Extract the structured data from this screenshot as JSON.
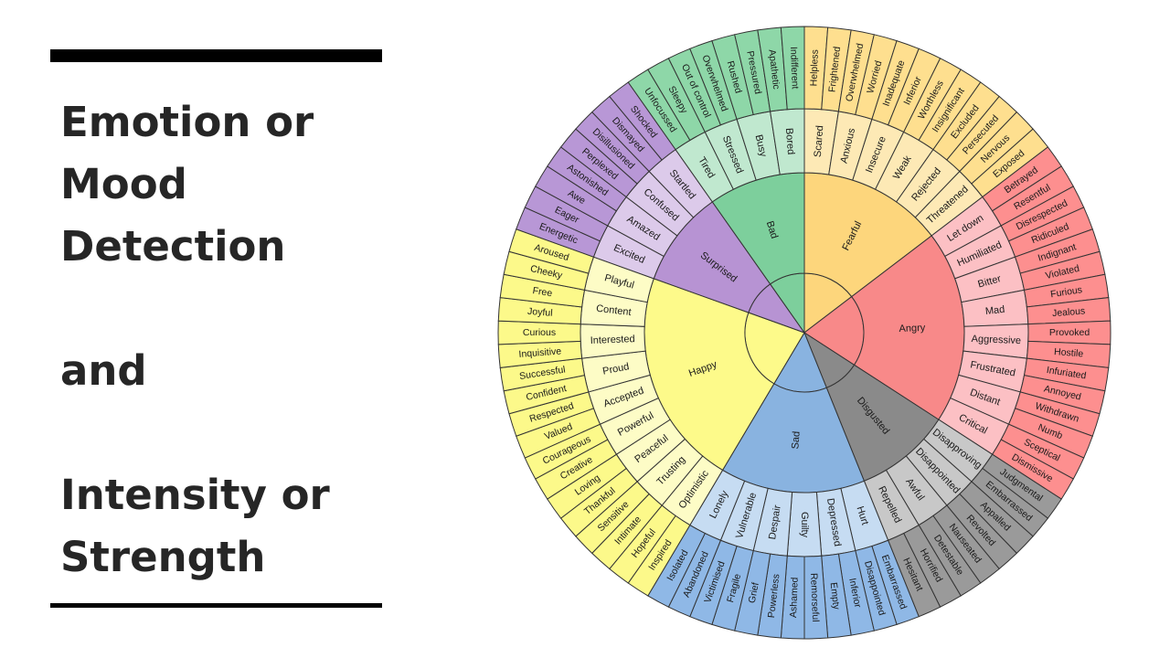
{
  "title_lines": [
    "Emotion or",
    "Mood",
    "Detection",
    "",
    "and",
    "",
    "Intensity or",
    "Strength"
  ],
  "wheel": {
    "categories": [
      {
        "name": "Fearful",
        "colors": [
          "#fdd67c",
          "#fde9b5",
          "#fedf8f"
        ],
        "groups": [
          {
            "name": "Scared",
            "outer": [
              "Helpless",
              "Frightened"
            ]
          },
          {
            "name": "Anxious",
            "outer": [
              "Overwhelmed",
              "Worried"
            ]
          },
          {
            "name": "Insecure",
            "outer": [
              "Inadequate",
              "Inferior"
            ]
          },
          {
            "name": "Weak",
            "outer": [
              "Worthless",
              "Insignificant"
            ]
          },
          {
            "name": "Rejected",
            "outer": [
              "Excluded",
              "Persecuted"
            ]
          },
          {
            "name": "Threatened",
            "outer": [
              "Nervous",
              "Exposed"
            ]
          }
        ]
      },
      {
        "name": "Angry",
        "colors": [
          "#f88989",
          "#fcc0c4",
          "#fd8f8f"
        ],
        "groups": [
          {
            "name": "Let down",
            "outer": [
              "Betrayed",
              "Resentful"
            ]
          },
          {
            "name": "Humiliated",
            "outer": [
              "Disrespected",
              "Ridiculed"
            ]
          },
          {
            "name": "Bitter",
            "outer": [
              "Indignant",
              "Violated"
            ]
          },
          {
            "name": "Mad",
            "outer": [
              "Furious",
              "Jealous"
            ]
          },
          {
            "name": "Aggressive",
            "outer": [
              "Provoked",
              "Hostile"
            ]
          },
          {
            "name": "Frustrated",
            "outer": [
              "Infuriated",
              "Annoyed"
            ]
          },
          {
            "name": "Distant",
            "outer": [
              "Withdrawn",
              "Numb"
            ]
          },
          {
            "name": "Critical",
            "outer": [
              "Sceptical",
              "Dismissive"
            ]
          }
        ]
      },
      {
        "name": "Disgusted",
        "colors": [
          "#8a8a8a",
          "#c8c8c8",
          "#9a9a9a"
        ],
        "groups": [
          {
            "name": "Disapproving",
            "outer": [
              "Judgmental",
              "Embarrassed"
            ]
          },
          {
            "name": "Disappointed",
            "outer": [
              "Appalled",
              "Revolted"
            ]
          },
          {
            "name": "Awful",
            "outer": [
              "Nauseated",
              "Detestable"
            ]
          },
          {
            "name": "Repelled",
            "outer": [
              "Horrified",
              "Hesitant"
            ]
          }
        ]
      },
      {
        "name": "Sad",
        "colors": [
          "#89b3e0",
          "#c6dcf2",
          "#8fb8e6"
        ],
        "groups": [
          {
            "name": "Hurt",
            "outer": [
              "Embarrassed",
              "Disappointed"
            ]
          },
          {
            "name": "Depressed",
            "outer": [
              "Inferior",
              "Empty"
            ]
          },
          {
            "name": "Guilty",
            "outer": [
              "Remorseful",
              "Ashamed"
            ]
          },
          {
            "name": "Despair",
            "outer": [
              "Powerless",
              "Grief"
            ]
          },
          {
            "name": "Vulnerable",
            "outer": [
              "Fragile",
              "Victimised"
            ]
          },
          {
            "name": "Lonely",
            "outer": [
              "Abandoned",
              "Isolated"
            ]
          }
        ]
      },
      {
        "name": "Happy",
        "colors": [
          "#fdfa8a",
          "#fdfcc6",
          "#fcf98a"
        ],
        "groups": [
          {
            "name": "Optimistic",
            "outer": [
              "Inspired",
              "Hopeful"
            ]
          },
          {
            "name": "Trusting",
            "outer": [
              "Intimate",
              "Sensitive"
            ]
          },
          {
            "name": "Peaceful",
            "outer": [
              "Thankful",
              "Loving"
            ]
          },
          {
            "name": "Powerful",
            "outer": [
              "Creative",
              "Courageous"
            ]
          },
          {
            "name": "Accepted",
            "outer": [
              "Valued",
              "Respected"
            ]
          },
          {
            "name": "Proud",
            "outer": [
              "Confident",
              "Successful"
            ]
          },
          {
            "name": "Interested",
            "outer": [
              "Inquisitive",
              "Curious"
            ]
          },
          {
            "name": "Content",
            "outer": [
              "Joyful",
              "Free"
            ]
          },
          {
            "name": "Playful",
            "outer": [
              "Cheeky",
              "Aroused"
            ]
          }
        ]
      },
      {
        "name": "Surprised",
        "colors": [
          "#b793d3",
          "#dccaea",
          "#b897d6"
        ],
        "groups": [
          {
            "name": "Excited",
            "outer": [
              "Energetic",
              "Eager"
            ]
          },
          {
            "name": "Amazed",
            "outer": [
              "Awe",
              "Astonished"
            ]
          },
          {
            "name": "Confused",
            "outer": [
              "Perplexed",
              "Disillusioned"
            ]
          },
          {
            "name": "Startled",
            "outer": [
              "Dismayed",
              "Shocked"
            ]
          }
        ]
      },
      {
        "name": "Bad",
        "colors": [
          "#7dcf9c",
          "#c0e8cf",
          "#8ed7a8"
        ],
        "groups": [
          {
            "name": "Tired",
            "outer": [
              "Unfocussed",
              "Sleepy"
            ]
          },
          {
            "name": "Stressed",
            "outer": [
              "Out of control",
              "Overwhelmed"
            ]
          },
          {
            "name": "Busy",
            "outer": [
              "Rushed",
              "Pressured"
            ]
          },
          {
            "name": "Bored",
            "outer": [
              "Apathetic",
              "Indifferent"
            ]
          }
        ]
      }
    ]
  }
}
